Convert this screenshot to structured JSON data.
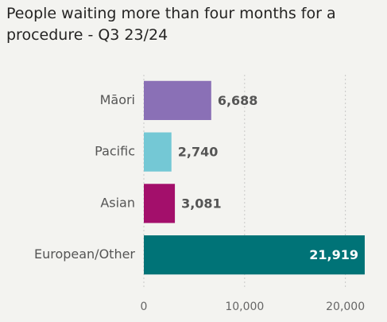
{
  "chart_data": {
    "type": "hbar",
    "title": "People waiting more than four months for a procedure - Q3 23/24",
    "categories": [
      "Māori",
      "Pacific",
      "Asian",
      "European/Other"
    ],
    "values": [
      6688,
      2740,
      3081,
      21919
    ],
    "value_labels": [
      "6,688",
      "2,740",
      "3,081",
      "21,919"
    ],
    "colors": [
      "#8a70b6",
      "#74c8d5",
      "#a30f6b",
      "#007377"
    ],
    "xlim": [
      0,
      22000
    ],
    "xticks": [
      0,
      {
        "value": 10000,
        "label": "10,000"
      },
      {
        "value": 20000,
        "label": "20,000"
      }
    ],
    "grid": true
  }
}
